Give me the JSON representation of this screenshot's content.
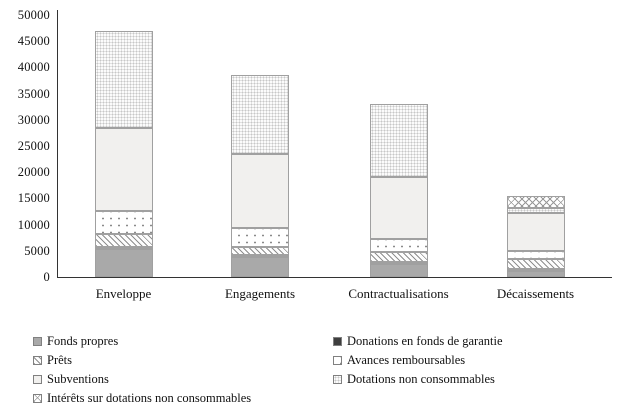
{
  "chart_data": {
    "type": "bar",
    "stacked": true,
    "title": "",
    "xlabel": "",
    "ylabel": "",
    "ylim": [
      0,
      50000
    ],
    "yticks": [
      0,
      5000,
      10000,
      15000,
      20000,
      25000,
      30000,
      35000,
      40000,
      45000,
      50000
    ],
    "grid": false,
    "legend_position": "bottom",
    "categories": [
      "Enveloppe",
      "Engagements",
      "Contractualisations",
      "Décaissements"
    ],
    "series": [
      {
        "name": "Fonds propres",
        "values": [
          5300,
          3800,
          2500,
          1200
        ]
      },
      {
        "name": "Donations en fonds de garantie",
        "values": [
          500,
          400,
          400,
          400
        ]
      },
      {
        "name": "Prêts",
        "values": [
          2500,
          1500,
          1800,
          1800
        ]
      },
      {
        "name": "Avances remboursables",
        "values": [
          4300,
          3700,
          2500,
          1600
        ]
      },
      {
        "name": "Subventions",
        "values": [
          15900,
          14100,
          11800,
          7300
        ]
      },
      {
        "name": "Dotations non consommables",
        "values": [
          18500,
          15000,
          14000,
          800
        ]
      },
      {
        "name": "Intérêts sur dotations non consommables",
        "values": [
          0,
          0,
          0,
          2400
        ]
      }
    ],
    "totals": [
      47000,
      38500,
      33000,
      15500
    ]
  },
  "colors": {
    "background": "#ffffff",
    "axis": "#333333",
    "segment_border": "#a0a0a0",
    "solid_gray": "#a9a9a9",
    "solid_dark": "#3e3e3e",
    "light_gray": "#f1f0ee"
  }
}
